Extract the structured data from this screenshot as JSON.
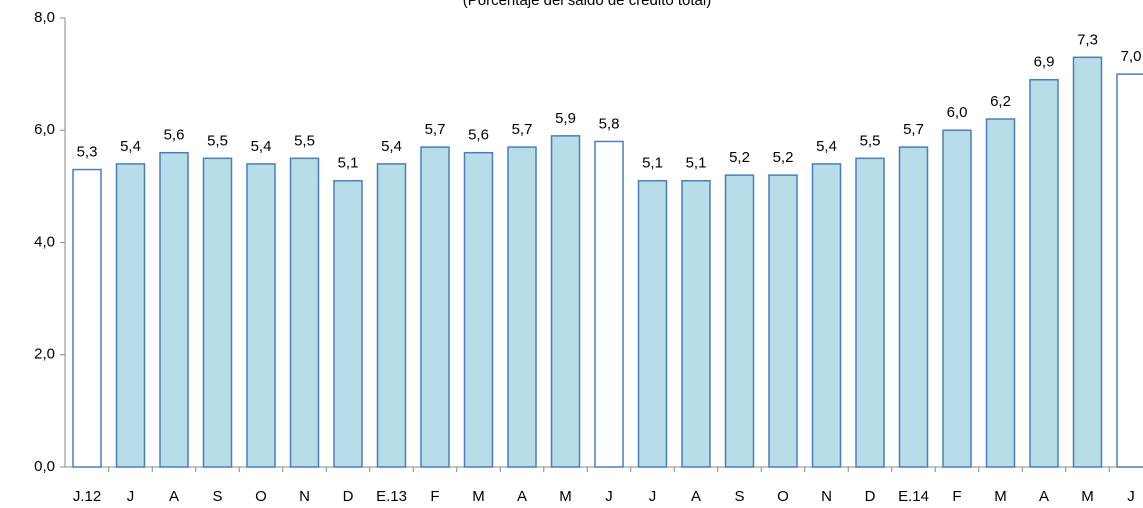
{
  "chart_data": {
    "type": "bar",
    "subtitle": "(Porcentaje del saldo de crédito total)",
    "categories": [
      "J.12",
      "J",
      "A",
      "S",
      "O",
      "N",
      "D",
      "E.13",
      "F",
      "M",
      "A",
      "M",
      "J",
      "J",
      "A",
      "S",
      "O",
      "N",
      "D",
      "E.14",
      "F",
      "M",
      "A",
      "M",
      "J"
    ],
    "values": [
      5.3,
      5.4,
      5.6,
      5.5,
      5.4,
      5.5,
      5.1,
      5.4,
      5.7,
      5.6,
      5.7,
      5.9,
      5.8,
      5.1,
      5.1,
      5.2,
      5.2,
      5.4,
      5.5,
      5.7,
      6.0,
      6.2,
      6.9,
      7.3,
      7.0
    ],
    "value_labels": [
      "5,3",
      "5,4",
      "5,6",
      "5,5",
      "5,4",
      "5,5",
      "5,1",
      "5,4",
      "5,7",
      "5,6",
      "5,7",
      "5,9",
      "5,8",
      "5,1",
      "5,1",
      "5,2",
      "5,2",
      "5,4",
      "5,5",
      "5,7",
      "6,0",
      "6,2",
      "6,9",
      "7,3",
      "7,0"
    ],
    "colors": [
      "#ffffff",
      "#b7dde8",
      "#b7dde8",
      "#b7dde8",
      "#b7dde8",
      "#b7dde8",
      "#b7dde8",
      "#b7dde8",
      "#b7dde8",
      "#b7dde8",
      "#b7dde8",
      "#b7dde8",
      "#ffffff",
      "#b7dde8",
      "#b7dde8",
      "#b7dde8",
      "#b7dde8",
      "#b7dde8",
      "#b7dde8",
      "#b7dde8",
      "#b7dde8",
      "#b7dde8",
      "#b7dde8",
      "#b7dde8",
      "#ffffff"
    ],
    "edge_color": "#4a7ebb",
    "ylim": [
      0,
      8
    ],
    "yticks": [
      {
        "value": 0,
        "label": "0,0"
      },
      {
        "value": 2,
        "label": "2,0"
      },
      {
        "value": 4,
        "label": "4,0"
      },
      {
        "value": 6,
        "label": "6,0"
      },
      {
        "value": 8,
        "label": "8,0"
      }
    ],
    "grid": false
  }
}
